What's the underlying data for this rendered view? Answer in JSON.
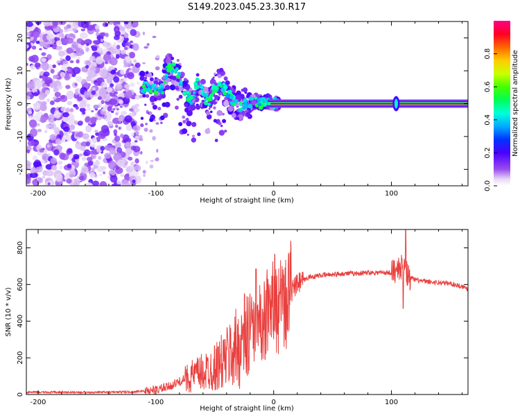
{
  "title": "S149.2023.045.23.30.R17",
  "chart_data": [
    {
      "type": "heatmap",
      "name": "spectrogram",
      "xlabel": "Height of straight line (km)",
      "ylabel": "Frequency (Hz)",
      "xlim": [
        -210,
        165
      ],
      "ylim": [
        -25,
        25
      ],
      "xticks": [
        -200,
        -100,
        0,
        100
      ],
      "yticks": [
        -20,
        -10,
        0,
        10,
        20
      ],
      "colorbar": {
        "label": "Normalized spectral amplitude",
        "range": [
          0.0,
          1.0
        ],
        "ticks": [
          0.0,
          0.2,
          0.4,
          0.6,
          0.8
        ]
      },
      "features": {
        "noise_region_km": [
          -210,
          -115
        ],
        "signal_band_km": [
          5,
          165
        ],
        "signal_frequency_hz": 0,
        "signal_amplitude": 0.95,
        "disturbance_track": {
          "x": [
            -112,
            -103,
            -95,
            -90,
            -85,
            -80,
            -75,
            -70,
            -65,
            -60,
            -55,
            -50,
            -45,
            -40,
            -35,
            -30,
            -25,
            -20,
            -15,
            -10,
            -5,
            0,
            5
          ],
          "y": [
            5,
            5,
            4,
            11,
            11,
            8,
            3,
            1,
            6,
            3,
            0,
            5,
            6,
            4,
            1,
            -1,
            0,
            0,
            1,
            0,
            1,
            0,
            0
          ]
        },
        "spot_at_100km": {
          "x": 104,
          "y": 0
        }
      }
    },
    {
      "type": "line",
      "name": "snr",
      "xlabel": "Height of straight line (km)",
      "ylabel": "SNR (10 * v/v)",
      "xlim": [
        -210,
        165
      ],
      "ylim": [
        0,
        900
      ],
      "xticks": [
        -200,
        -100,
        0,
        100
      ],
      "yticks": [
        0,
        200,
        400,
        600,
        800
      ],
      "color": "#e8403e",
      "series": [
        {
          "name": "SNR",
          "x": [
            -210,
            -180,
            -150,
            -120,
            -100,
            -90,
            -80,
            -70,
            -60,
            -50,
            -45,
            -40,
            -35,
            -30,
            -25,
            -20,
            -15,
            -10,
            -5,
            0,
            5,
            10,
            15,
            20,
            25,
            30,
            40,
            50,
            60,
            70,
            80,
            90,
            100,
            105,
            110,
            115,
            120,
            130,
            140,
            150,
            160,
            165
          ],
          "y": [
            12,
            12,
            12,
            14,
            25,
            40,
            70,
            100,
            120,
            150,
            170,
            200,
            230,
            260,
            300,
            340,
            380,
            400,
            420,
            440,
            470,
            510,
            560,
            600,
            620,
            640,
            650,
            655,
            660,
            660,
            665,
            665,
            665,
            680,
            700,
            640,
            625,
            615,
            610,
            605,
            590,
            575
          ]
        }
      ],
      "annotations": {
        "spikes": [
          {
            "x": 1,
            "y": 765
          },
          {
            "x": -15,
            "y": 685
          },
          {
            "x": 112,
            "y": 900
          },
          {
            "x": 110,
            "y": 470
          }
        ]
      }
    }
  ]
}
